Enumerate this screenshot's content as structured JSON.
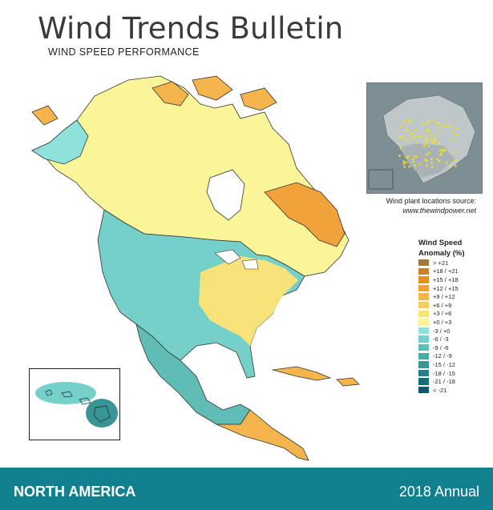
{
  "header": {
    "title": "Wind Trends Bulletin",
    "subtitle": "WIND SPEED PERFORMANCE"
  },
  "inset_map": {
    "caption_line1": "Wind plant locations source:",
    "caption_line2": "www.thewindpower.net",
    "marker_color": "#f2e21a"
  },
  "legend": {
    "title_line1": "Wind Speed",
    "title_line2": "Anomaly (%)",
    "items": [
      {
        "label": "> +21",
        "color": "#a0773e"
      },
      {
        "label": "+18 / +21",
        "color": "#c7802c"
      },
      {
        "label": "+15 / +18",
        "color": "#e58f22"
      },
      {
        "label": "+12 / +15",
        "color": "#f2a23a"
      },
      {
        "label": "+9 / +12",
        "color": "#f6b54c"
      },
      {
        "label": "+6 / +9",
        "color": "#f8cc5e"
      },
      {
        "label": "+3 / +6",
        "color": "#f8e27a"
      },
      {
        "label": "+0 / +3",
        "color": "#fbf59a"
      },
      {
        "label": "-3 / +0",
        "color": "#8fe2dc"
      },
      {
        "label": "-6 / -3",
        "color": "#74d0c9"
      },
      {
        "label": "-9 / -6",
        "color": "#5fbdb6"
      },
      {
        "label": "-12 / -9",
        "color": "#4aa9a4"
      },
      {
        "label": "-15 / -12",
        "color": "#389596"
      },
      {
        "label": "-18 / -15",
        "color": "#267f87"
      },
      {
        "label": "-21 / -18",
        "color": "#176b78"
      },
      {
        "label": "< -21",
        "color": "#0c566a"
      }
    ]
  },
  "footer": {
    "region": "NORTH AMERICA",
    "period": "2018 Annual"
  }
}
